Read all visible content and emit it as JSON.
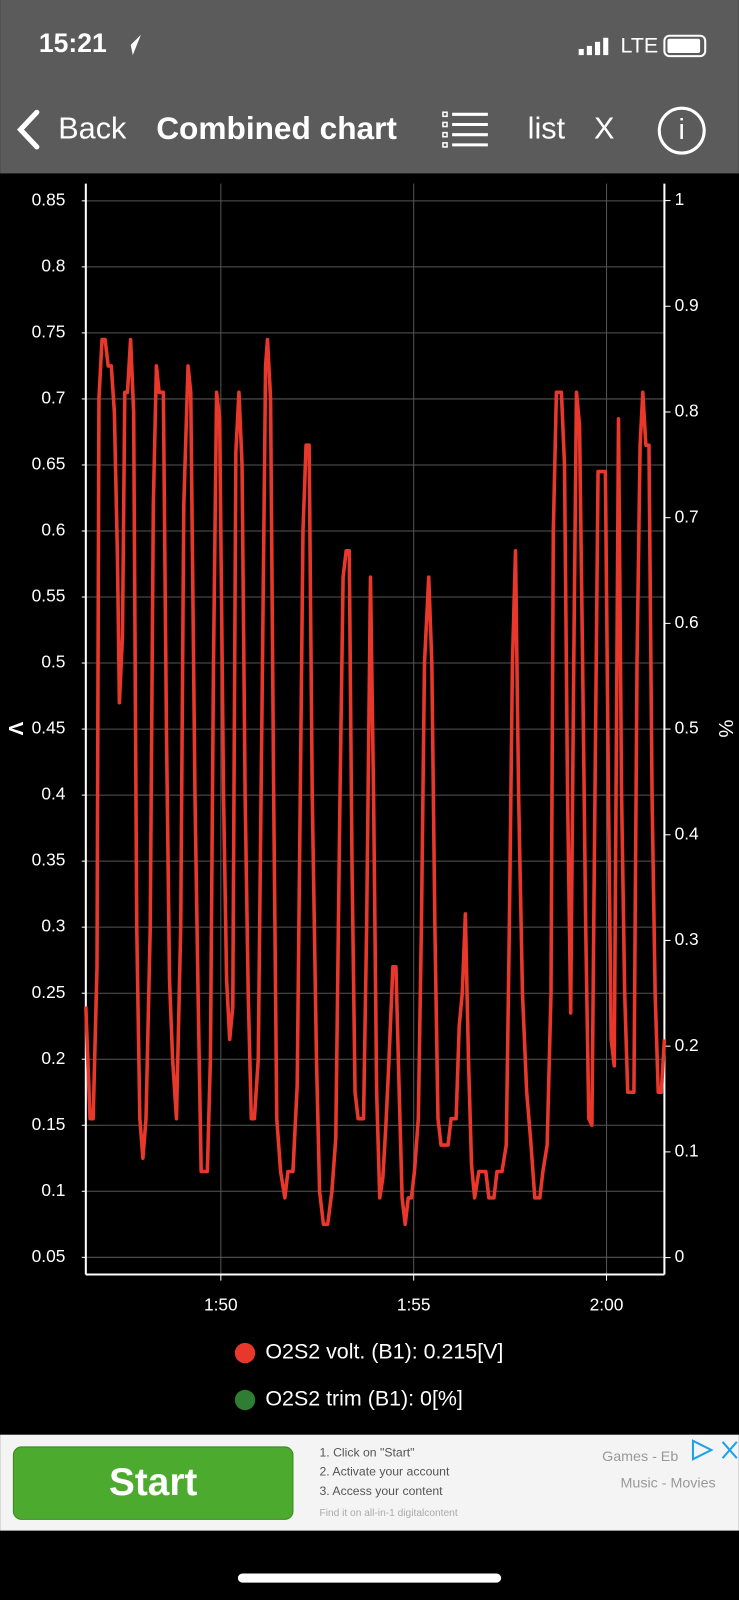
{
  "status_bar": {
    "time": "15:21",
    "network": "LTE"
  },
  "nav": {
    "back": "Back",
    "title": "Combined chart",
    "list": "list",
    "close": "X",
    "info": "i"
  },
  "chart_data": {
    "type": "line",
    "y_label": "V",
    "y2_label": "%",
    "x": [
      106.5,
      106.61,
      106.69,
      106.79,
      106.84,
      106.92,
      107.0,
      107.08,
      107.16,
      107.24,
      107.32,
      107.37,
      107.45,
      107.51,
      107.58,
      107.66,
      107.74,
      107.82,
      107.9,
      107.98,
      108.06,
      108.17,
      108.25,
      108.33,
      108.4,
      108.51,
      108.59,
      108.67,
      108.75,
      108.85,
      108.96,
      109.04,
      109.15,
      109.22,
      109.33,
      109.41,
      109.49,
      109.65,
      109.73,
      109.81,
      109.89,
      109.97,
      110.07,
      110.15,
      110.23,
      110.31,
      110.39,
      110.47,
      110.55,
      110.63,
      110.71,
      110.79,
      110.87,
      110.97,
      111.08,
      111.16,
      111.21,
      111.29,
      111.37,
      111.45,
      111.55,
      111.66,
      111.74,
      111.87,
      111.98,
      112.06,
      112.13,
      112.21,
      112.29,
      112.37,
      112.48,
      112.56,
      112.66,
      112.77,
      112.88,
      112.98,
      113.09,
      113.17,
      113.25,
      113.33,
      113.4,
      113.48,
      113.56,
      113.7,
      113.78,
      113.88,
      113.96,
      114.04,
      114.12,
      114.2,
      114.28,
      114.36,
      114.46,
      114.54,
      114.62,
      114.7,
      114.78,
      114.86,
      114.94,
      115.02,
      115.12,
      115.2,
      115.28,
      115.39,
      115.47,
      115.55,
      115.63,
      115.71,
      115.89,
      115.97,
      116.1,
      116.18,
      116.26,
      116.34,
      116.42,
      116.5,
      116.58,
      116.69,
      116.87,
      116.95,
      117.08,
      117.16,
      117.29,
      117.4,
      117.48,
      117.56,
      117.64,
      117.72,
      117.82,
      117.93,
      118.03,
      118.14,
      118.27,
      118.35,
      118.46,
      118.56,
      118.62,
      118.7,
      118.83,
      118.91,
      118.99,
      119.07,
      119.15,
      119.22,
      119.3,
      119.38,
      119.46,
      119.54,
      119.62,
      119.7,
      119.78,
      119.97,
      120.05,
      120.12,
      120.2,
      120.31,
      120.39,
      120.47,
      120.55,
      120.71,
      120.79,
      120.87,
      120.94,
      121.02,
      121.1,
      121.18,
      121.26,
      121.34,
      121.42,
      121.5
    ],
    "series": [
      {
        "name": "O2S2 volt. (B1): 0.215[V]",
        "color": "#e8382b",
        "values": [
          0.24,
          0.155,
          0.155,
          0.27,
          0.7,
          0.745,
          0.745,
          0.725,
          0.725,
          0.69,
          0.58,
          0.47,
          0.52,
          0.705,
          0.705,
          0.745,
          0.69,
          0.3,
          0.155,
          0.125,
          0.155,
          0.3,
          0.62,
          0.725,
          0.705,
          0.705,
          0.45,
          0.26,
          0.2,
          0.155,
          0.3,
          0.62,
          0.725,
          0.705,
          0.4,
          0.25,
          0.115,
          0.115,
          0.2,
          0.5,
          0.705,
          0.685,
          0.4,
          0.26,
          0.215,
          0.24,
          0.66,
          0.705,
          0.65,
          0.4,
          0.25,
          0.155,
          0.155,
          0.2,
          0.5,
          0.725,
          0.745,
          0.7,
          0.4,
          0.155,
          0.115,
          0.095,
          0.115,
          0.115,
          0.18,
          0.4,
          0.6,
          0.665,
          0.665,
          0.4,
          0.2,
          0.1,
          0.075,
          0.075,
          0.1,
          0.14,
          0.4,
          0.565,
          0.585,
          0.585,
          0.35,
          0.175,
          0.155,
          0.155,
          0.3,
          0.565,
          0.4,
          0.175,
          0.095,
          0.11,
          0.15,
          0.2,
          0.27,
          0.27,
          0.18,
          0.095,
          0.075,
          0.095,
          0.095,
          0.115,
          0.155,
          0.3,
          0.5,
          0.565,
          0.5,
          0.3,
          0.155,
          0.135,
          0.135,
          0.155,
          0.155,
          0.225,
          0.25,
          0.31,
          0.2,
          0.12,
          0.095,
          0.115,
          0.115,
          0.095,
          0.095,
          0.115,
          0.115,
          0.135,
          0.3,
          0.5,
          0.585,
          0.4,
          0.25,
          0.175,
          0.14,
          0.095,
          0.095,
          0.115,
          0.135,
          0.25,
          0.6,
          0.705,
          0.705,
          0.65,
          0.4,
          0.235,
          0.5,
          0.705,
          0.68,
          0.5,
          0.3,
          0.155,
          0.15,
          0.4,
          0.645,
          0.645,
          0.4,
          0.215,
          0.195,
          0.685,
          0.4,
          0.25,
          0.175,
          0.175,
          0.5,
          0.665,
          0.705,
          0.665,
          0.665,
          0.4,
          0.25,
          0.175,
          0.175,
          0.215
        ]
      }
    ],
    "legend": [
      {
        "name": "O2S2 volt. (B1): 0.215[V]",
        "color": "#e8382b"
      },
      {
        "name": "O2S2 trim (B1): 0[%]",
        "color": "#2e7d32"
      }
    ],
    "xlim": [
      106.5,
      121.5
    ],
    "xticks": [
      {
        "value": 110,
        "label": "1:50"
      },
      {
        "value": 115,
        "label": "1:55"
      },
      {
        "value": 120,
        "label": "2:00"
      }
    ],
    "ylim": [
      0.037,
      0.863
    ],
    "yticks": [
      0.05,
      0.1,
      0.15,
      0.2,
      0.25,
      0.3,
      0.35,
      0.4,
      0.45,
      0.5,
      0.55,
      0.6,
      0.65,
      0.7,
      0.75,
      0.8,
      0.85
    ],
    "y2lim": [
      -0.016,
      1.016
    ],
    "y2ticks": [
      0,
      0.1,
      0.2,
      0.3,
      0.4,
      0.5,
      0.6,
      0.7,
      0.8,
      0.9,
      1
    ],
    "grid": true
  },
  "ad": {
    "button": "Start",
    "steps": [
      "1. Click on \"Start\"",
      "2. Activate your account",
      "3. Access your content"
    ],
    "footer": "Find it on all-in-1 digitalcontent",
    "tags": [
      "Games - Eb",
      "Music - Movies"
    ]
  }
}
